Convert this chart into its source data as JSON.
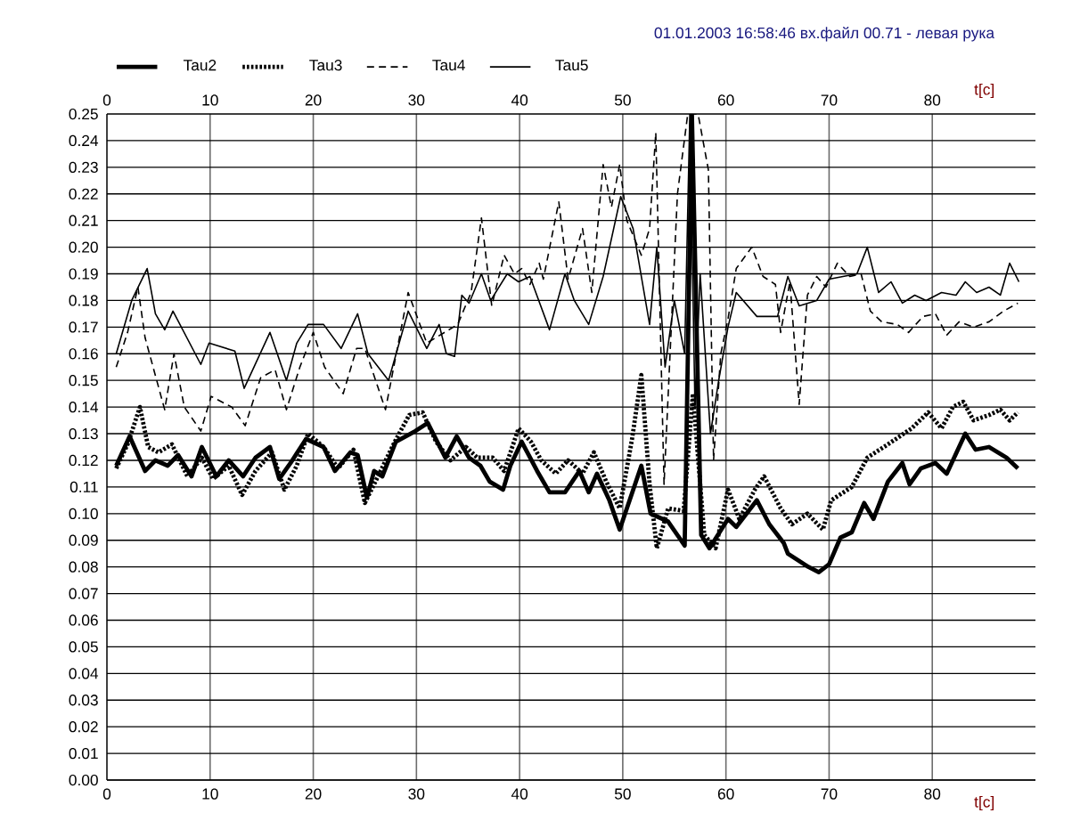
{
  "chart_data": {
    "type": "line",
    "title": "01.01.2003 16:58:46  вх.файл 00.71 - левая рука",
    "xlabel": "t[c]",
    "x2label": "t[c]",
    "xlim": [
      0,
      90
    ],
    "xticks": [
      0,
      10,
      20,
      30,
      40,
      50,
      60,
      70,
      80
    ],
    "x2lim": [
      0,
      90
    ],
    "x2ticks": [
      0,
      10,
      20,
      30,
      40,
      50,
      60,
      70,
      80
    ],
    "ylim": [
      0,
      0.25
    ],
    "yticks": [
      {
        "value": 0,
        "label": "0.00"
      },
      {
        "value": 0.01,
        "label": "0.01"
      },
      {
        "value": 0.02,
        "label": "0.02"
      },
      {
        "value": 0.03,
        "label": "0.03"
      },
      {
        "value": 0.04,
        "label": "0.04"
      },
      {
        "value": 0.05,
        "label": "0.05"
      },
      {
        "value": 0.06,
        "label": "0.06"
      },
      {
        "value": 0.07,
        "label": "0.07"
      },
      {
        "value": 0.08,
        "label": "0.08"
      },
      {
        "value": 0.09,
        "label": "0.09"
      },
      {
        "value": 0.1,
        "label": "0.10"
      },
      {
        "value": 0.11,
        "label": "0.11"
      },
      {
        "value": 0.12,
        "label": "0.12"
      },
      {
        "value": 0.13,
        "label": "0.13"
      },
      {
        "value": 0.14,
        "label": "0.14"
      },
      {
        "value": 0.15,
        "label": "0.15"
      },
      {
        "value": 0.16,
        "label": "0.16"
      },
      {
        "value": 0.17,
        "label": "0.17"
      },
      {
        "value": 0.18,
        "label": "0.18"
      },
      {
        "value": 0.19,
        "label": "0.19"
      },
      {
        "value": 0.2,
        "label": "0.20"
      },
      {
        "value": 0.21,
        "label": "0.21"
      },
      {
        "value": 0.22,
        "label": "0.22"
      },
      {
        "value": 0.23,
        "label": "0.23"
      },
      {
        "value": 0.24,
        "label": "0.24"
      },
      {
        "value": 0.25,
        "label": "0.25"
      }
    ],
    "grid": true,
    "legend": "top",
    "series": [
      {
        "name": "Tau2",
        "color": "#000000",
        "line_style": "solid",
        "x": [
          0.9,
          2.2,
          3.7,
          4.7,
          5.9,
          6.9,
          8.2,
          9.2,
          10.6,
          11.8,
          13.2,
          14.4,
          15.8,
          16.7,
          17.8,
          19.3,
          21,
          22.1,
          23.6,
          24.3,
          25.2,
          25.9,
          26.7,
          28,
          29.9,
          31.1,
          32.8,
          33.9,
          35.1,
          36.2,
          37.1,
          38.4,
          39.1,
          40.2,
          41.7,
          42.9,
          44.4,
          45.8,
          46.7,
          47.5,
          48.7,
          49.7,
          51.8,
          52.7,
          54.4,
          56,
          56.7,
          57.6,
          58.4,
          60.2,
          61,
          63,
          64.2,
          65.6,
          66,
          68,
          69,
          70,
          71.1,
          72.2,
          73.4,
          74.3,
          75.7,
          77.1,
          77.8,
          78.9,
          80.3,
          81.4,
          83.2,
          84.2,
          85.5,
          87.2,
          88.3
        ],
        "values": [
          0.118,
          0.129,
          0.116,
          0.12,
          0.118,
          0.122,
          0.114,
          0.125,
          0.114,
          0.12,
          0.114,
          0.121,
          0.125,
          0.113,
          0.119,
          0.128,
          0.125,
          0.116,
          0.123,
          0.122,
          0.106,
          0.116,
          0.114,
          0.127,
          0.131,
          0.134,
          0.121,
          0.129,
          0.121,
          0.118,
          0.112,
          0.109,
          0.118,
          0.127,
          0.116,
          0.108,
          0.108,
          0.116,
          0.108,
          0.115,
          0.105,
          0.094,
          0.118,
          0.1,
          0.097,
          0.088,
          0.25,
          0.092,
          0.087,
          0.098,
          0.095,
          0.105,
          0.096,
          0.089,
          0.085,
          0.08,
          0.078,
          0.081,
          0.091,
          0.093,
          0.104,
          0.098,
          0.112,
          0.119,
          0.111,
          0.117,
          0.119,
          0.115,
          0.13,
          0.124,
          0.125,
          0.121,
          0.117
        ]
      },
      {
        "name": "Tau3",
        "color": "#000000",
        "line_style": "dotted",
        "x": [
          0.9,
          2,
          3.2,
          4,
          5,
          6.3,
          7.8,
          9.2,
          10.3,
          11.8,
          13.1,
          14.4,
          16,
          17.2,
          18.4,
          19.5,
          21,
          22.4,
          23.9,
          25,
          26.4,
          27.9,
          29.3,
          30.6,
          31.9,
          33.3,
          34.8,
          35.9,
          37.4,
          38.5,
          39.9,
          41.1,
          42.1,
          43.5,
          44.7,
          46.1,
          47.2,
          48.4,
          49.7,
          50.9,
          51.8,
          52.6,
          53.3,
          54.4,
          55.9,
          56.8,
          57.9,
          59,
          60.2,
          61.3,
          62.8,
          63.7,
          65.3,
          66.4,
          67.9,
          69.4,
          70.2,
          72.2,
          73.7,
          75.7,
          78,
          79.6,
          80.9,
          82,
          83,
          84,
          85.5,
          86.6,
          87.5,
          88.3
        ],
        "values": [
          0.117,
          0.126,
          0.14,
          0.125,
          0.123,
          0.126,
          0.114,
          0.121,
          0.113,
          0.118,
          0.107,
          0.116,
          0.123,
          0.109,
          0.118,
          0.13,
          0.125,
          0.117,
          0.124,
          0.104,
          0.115,
          0.127,
          0.137,
          0.138,
          0.127,
          0.12,
          0.125,
          0.121,
          0.121,
          0.116,
          0.132,
          0.127,
          0.12,
          0.115,
          0.12,
          0.115,
          0.123,
          0.112,
          0.102,
          0.128,
          0.152,
          0.111,
          0.087,
          0.102,
          0.101,
          0.145,
          0.092,
          0.087,
          0.109,
          0.098,
          0.109,
          0.114,
          0.102,
          0.096,
          0.1,
          0.094,
          0.105,
          0.11,
          0.121,
          0.126,
          0.132,
          0.138,
          0.132,
          0.14,
          0.142,
          0.135,
          0.137,
          0.139,
          0.135,
          0.138
        ]
      },
      {
        "name": "Tau4",
        "color": "#000000",
        "line_style": "dashed",
        "x": [
          0.9,
          2,
          3,
          3.7,
          5.6,
          6.5,
          7.5,
          9.1,
          10.1,
          12.1,
          13.4,
          14.9,
          16.3,
          17.4,
          18.7,
          20,
          21.1,
          22.9,
          24.2,
          25,
          27,
          29.2,
          31,
          34,
          35.3,
          36.3,
          37.3,
          38.5,
          39.5,
          40.2,
          41,
          41.9,
          42.3,
          43.8,
          44.7,
          46.1,
          47,
          48.1,
          48.9,
          49.7,
          50.4,
          51.8,
          52.6,
          53.2,
          54,
          55.3,
          56.3,
          57.3,
          58.3,
          58.8,
          59.5,
          60.2,
          61,
          62.5,
          63.6,
          64.8,
          65.3,
          66.2,
          67.1,
          67.9,
          68.8,
          69.7,
          70.8,
          72,
          73.1,
          74,
          75.1,
          76.6,
          77.7,
          79.1,
          80.3,
          81.4,
          82.6,
          84,
          85.5,
          86.9,
          88.3
        ],
        "values": [
          0.155,
          0.168,
          0.185,
          0.166,
          0.139,
          0.16,
          0.14,
          0.131,
          0.144,
          0.14,
          0.133,
          0.151,
          0.154,
          0.139,
          0.155,
          0.168,
          0.155,
          0.145,
          0.162,
          0.162,
          0.139,
          0.183,
          0.164,
          0.171,
          0.183,
          0.211,
          0.178,
          0.197,
          0.19,
          0.192,
          0.186,
          0.194,
          0.188,
          0.217,
          0.188,
          0.207,
          0.183,
          0.231,
          0.215,
          0.231,
          0.21,
          0.197,
          0.207,
          0.243,
          0.111,
          0.22,
          0.25,
          0.25,
          0.229,
          0.12,
          0.16,
          0.173,
          0.192,
          0.2,
          0.189,
          0.186,
          0.168,
          0.187,
          0.141,
          0.182,
          0.189,
          0.185,
          0.194,
          0.189,
          0.19,
          0.176,
          0.172,
          0.171,
          0.168,
          0.174,
          0.175,
          0.167,
          0.172,
          0.17,
          0.172,
          0.176,
          0.179
        ]
      },
      {
        "name": "Tau5",
        "color": "#000000",
        "line_style": "solid",
        "x": [
          0.9,
          2.4,
          3.9,
          4.7,
          5.6,
          6.4,
          9.1,
          9.9,
          12.4,
          13.3,
          15.8,
          17.4,
          18.4,
          19.5,
          21,
          22.7,
          24.3,
          25.3,
          27.3,
          29.2,
          31,
          32.2,
          32.9,
          33.7,
          34.4,
          35.1,
          36.3,
          37.2,
          38.8,
          39.9,
          41,
          42.9,
          44.4,
          45.3,
          46.7,
          48.1,
          49.8,
          51,
          52.6,
          53.3,
          54.1,
          55,
          56,
          56.5,
          57,
          57.5,
          58.5,
          59.3,
          60.2,
          61,
          63,
          65,
          66,
          67.1,
          68.8,
          70,
          72.7,
          73.7,
          74.8,
          76,
          77.1,
          78.3,
          79.4,
          80.9,
          82.3,
          83.2,
          84.3,
          85.5,
          86.6,
          87.5,
          88.4
        ],
        "values": [
          0.16,
          0.18,
          0.192,
          0.175,
          0.169,
          0.176,
          0.156,
          0.164,
          0.161,
          0.147,
          0.168,
          0.15,
          0.164,
          0.171,
          0.171,
          0.162,
          0.175,
          0.16,
          0.15,
          0.176,
          0.162,
          0.171,
          0.16,
          0.159,
          0.182,
          0.179,
          0.19,
          0.18,
          0.19,
          0.187,
          0.189,
          0.169,
          0.19,
          0.18,
          0.171,
          0.189,
          0.219,
          0.207,
          0.171,
          0.2,
          0.155,
          0.18,
          0.16,
          0.25,
          0.14,
          0.19,
          0.13,
          0.15,
          0.17,
          0.183,
          0.174,
          0.174,
          0.189,
          0.178,
          0.18,
          0.188,
          0.19,
          0.2,
          0.183,
          0.187,
          0.179,
          0.182,
          0.18,
          0.183,
          0.182,
          0.187,
          0.183,
          0.185,
          0.182,
          0.194,
          0.187
        ]
      }
    ]
  }
}
